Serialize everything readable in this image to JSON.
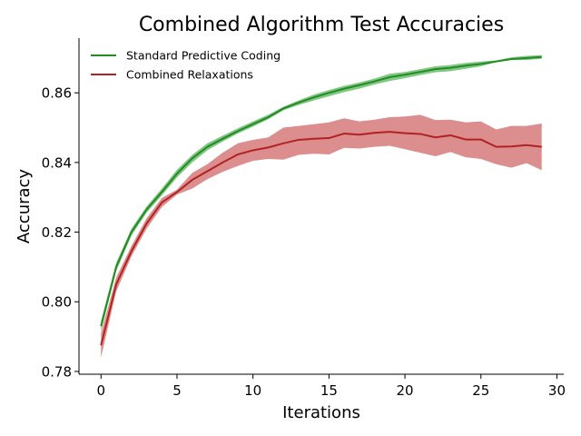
{
  "chart_data": {
    "type": "line",
    "title": "Combined Algorithm Test Accuracies",
    "xlabel": "Iterations",
    "ylabel": "Accuracy",
    "xlim": [
      -1.45,
      30.45
    ],
    "ylim": [
      0.7792,
      0.8757
    ],
    "xticks": [
      0,
      5,
      10,
      15,
      20,
      25,
      30
    ],
    "xtick_labels": [
      "0",
      "5",
      "10",
      "15",
      "20",
      "25",
      "30"
    ],
    "yticks": [
      0.78,
      0.8,
      0.82,
      0.84,
      0.86
    ],
    "ytick_labels": [
      "0.78",
      "0.80",
      "0.82",
      "0.84",
      "0.86"
    ],
    "grid": false,
    "legend_position": "top-left",
    "x": [
      0,
      1,
      2,
      3,
      4,
      5,
      6,
      7,
      8,
      9,
      10,
      11,
      12,
      13,
      14,
      15,
      16,
      17,
      18,
      19,
      20,
      21,
      22,
      23,
      24,
      25,
      26,
      27,
      28,
      29
    ],
    "series": [
      {
        "name": "Standard Predictive Coding",
        "color": "#228b22",
        "band_color": "#4caf50",
        "values": [
          0.793,
          0.81,
          0.82,
          0.8265,
          0.8315,
          0.8368,
          0.8412,
          0.8445,
          0.8468,
          0.849,
          0.851,
          0.853,
          0.8555,
          0.8572,
          0.8587,
          0.86,
          0.8612,
          0.8622,
          0.8633,
          0.8645,
          0.8652,
          0.866,
          0.8668,
          0.8672,
          0.8678,
          0.8683,
          0.869,
          0.8697,
          0.87,
          0.8703
        ],
        "lower": [
          0.7915,
          0.8088,
          0.819,
          0.8256,
          0.8305,
          0.8357,
          0.84,
          0.8435,
          0.846,
          0.8483,
          0.8503,
          0.8524,
          0.855,
          0.8565,
          0.8578,
          0.859,
          0.8602,
          0.8612,
          0.8624,
          0.8634,
          0.8642,
          0.8651,
          0.8659,
          0.8662,
          0.8669,
          0.8676,
          0.8688,
          0.8694,
          0.8694,
          0.8698
        ],
        "upper": [
          0.7945,
          0.8112,
          0.821,
          0.8274,
          0.8325,
          0.8379,
          0.8422,
          0.8455,
          0.8477,
          0.8498,
          0.8518,
          0.8537,
          0.856,
          0.8578,
          0.8595,
          0.8608,
          0.862,
          0.863,
          0.8641,
          0.8655,
          0.866,
          0.8668,
          0.8676,
          0.868,
          0.8686,
          0.869,
          0.8693,
          0.8702,
          0.8706,
          0.8708
        ]
      },
      {
        "name": "Combined Relaxations",
        "color": "#b22222",
        "band_color": "#cd5c5c",
        "values": [
          0.7875,
          0.805,
          0.8145,
          0.8225,
          0.8285,
          0.8315,
          0.835,
          0.8375,
          0.84,
          0.8423,
          0.8435,
          0.8443,
          0.8455,
          0.8465,
          0.8468,
          0.847,
          0.8483,
          0.848,
          0.8485,
          0.8488,
          0.8484,
          0.8482,
          0.8472,
          0.8478,
          0.8466,
          0.8466,
          0.8445,
          0.8446,
          0.845,
          0.8445
        ],
        "lower": [
          0.784,
          0.803,
          0.813,
          0.821,
          0.8272,
          0.8308,
          0.8325,
          0.8352,
          0.8373,
          0.839,
          0.8405,
          0.841,
          0.8408,
          0.8422,
          0.8425,
          0.8423,
          0.8442,
          0.844,
          0.8445,
          0.8448,
          0.8438,
          0.8428,
          0.8418,
          0.843,
          0.8415,
          0.841,
          0.8395,
          0.8385,
          0.8398,
          0.8378
        ],
        "upper": [
          0.791,
          0.807,
          0.816,
          0.824,
          0.8298,
          0.8322,
          0.837,
          0.8395,
          0.8428,
          0.8455,
          0.8465,
          0.8472,
          0.85,
          0.8505,
          0.851,
          0.8515,
          0.8527,
          0.8518,
          0.8523,
          0.853,
          0.8532,
          0.8537,
          0.8522,
          0.8523,
          0.8515,
          0.8518,
          0.8495,
          0.8505,
          0.8505,
          0.8512
        ]
      }
    ]
  }
}
